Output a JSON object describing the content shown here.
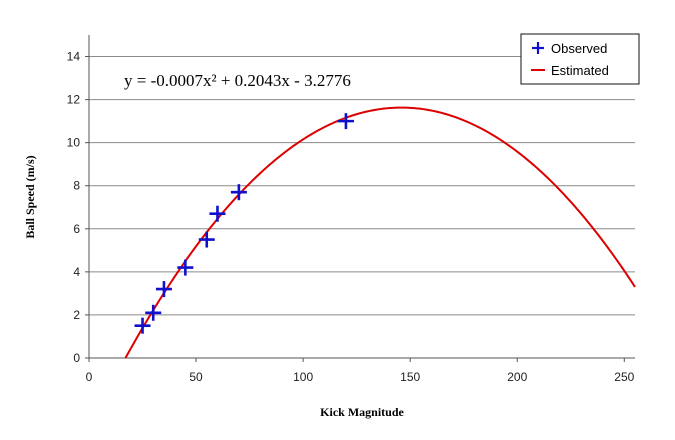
{
  "chart_data": {
    "type": "scatter",
    "title": "",
    "xlabel": "Kick Magnitude",
    "ylabel": "Ball Speed (m/s)",
    "xlim": [
      0,
      255
    ],
    "ylim": [
      0,
      15
    ],
    "xticks": [
      0,
      50,
      100,
      150,
      200,
      250
    ],
    "yticks": [
      0,
      2,
      4,
      6,
      8,
      10,
      12,
      14
    ],
    "grid": "horizontal",
    "legend_position": "top-right",
    "annotation": "y = -0.0007x² + 0.2043x - 3.2776",
    "series": [
      {
        "name": "Observed",
        "type": "scatter",
        "marker": "plus",
        "color": "#1010cc",
        "points": [
          {
            "x": 25,
            "y": 1.5
          },
          {
            "x": 30,
            "y": 2.1
          },
          {
            "x": 35,
            "y": 3.2
          },
          {
            "x": 45,
            "y": 4.2
          },
          {
            "x": 55,
            "y": 5.5
          },
          {
            "x": 60,
            "y": 6.7
          },
          {
            "x": 70,
            "y": 7.7
          },
          {
            "x": 120,
            "y": 11.0
          }
        ]
      },
      {
        "name": "Estimated",
        "type": "line",
        "color": "#dd0000",
        "coefficients": [
          -0.0007,
          0.2043,
          -3.2776
        ]
      }
    ]
  }
}
